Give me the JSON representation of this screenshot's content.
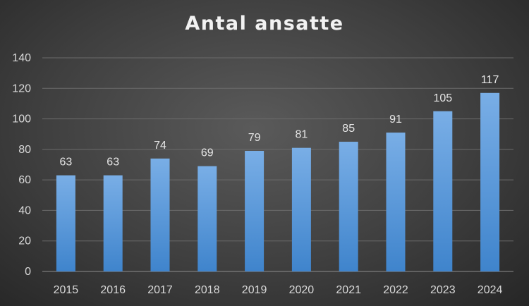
{
  "chart_data": {
    "type": "bar",
    "title": "Antal ansatte",
    "categories": [
      "2015",
      "2016",
      "2017",
      "2018",
      "2019",
      "2020",
      "2021",
      "2022",
      "2023",
      "2024"
    ],
    "values": [
      63,
      63,
      74,
      69,
      79,
      81,
      85,
      91,
      105,
      117
    ],
    "ylim": [
      0,
      140
    ],
    "yticks": [
      0,
      20,
      40,
      60,
      80,
      100,
      120,
      140
    ],
    "grid": true,
    "data_labels": true,
    "legend": "none"
  },
  "colors": {
    "bar_top": "#79aee6",
    "bar_bottom": "#3f84cc",
    "grid": "#6b6b6b",
    "axis": "#8c8c8c"
  }
}
